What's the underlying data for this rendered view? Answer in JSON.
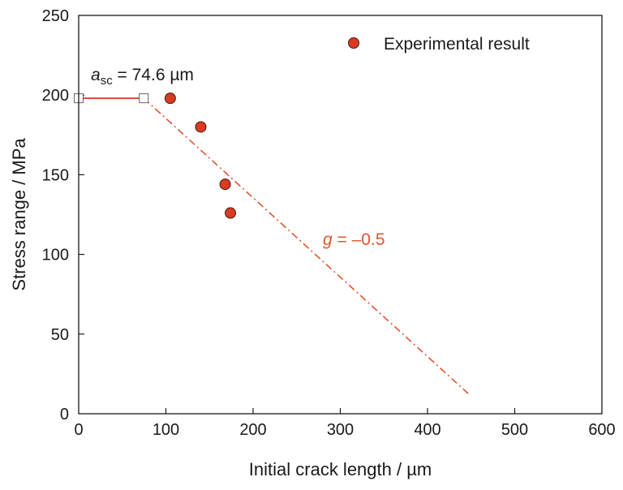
{
  "chart_data": {
    "type": "scatter",
    "title": "",
    "xlabel": "Initial crack length / µm",
    "ylabel": "Stress range / MPa",
    "xlim": [
      0,
      600
    ],
    "ylim": [
      0,
      250
    ],
    "xticks": [
      "0",
      "100",
      "200",
      "300",
      "400",
      "500",
      "600"
    ],
    "yticks": [
      "0",
      "50",
      "100",
      "150",
      "200",
      "250"
    ],
    "grid": false,
    "legend_position": "top-right",
    "series": [
      {
        "name": "Experimental result",
        "kind": "points",
        "color": "#d93a22",
        "points": [
          {
            "x": 105,
            "y": 198
          },
          {
            "x": 140,
            "y": 180
          },
          {
            "x": 168,
            "y": 144
          },
          {
            "x": 174,
            "y": 126
          }
        ]
      },
      {
        "kind": "step-line",
        "color": "#d93a22",
        "points": [
          {
            "x": 0,
            "y": 198
          },
          {
            "x": 74.6,
            "y": 198
          }
        ]
      },
      {
        "kind": "dash-dot-line",
        "color": "#e0552f",
        "points": [
          {
            "x": 74.6,
            "y": 198
          },
          {
            "x": 448,
            "y": 12
          }
        ]
      }
    ],
    "markers": [
      {
        "x": 0,
        "y": 198
      },
      {
        "x": 74.6,
        "y": 198
      }
    ],
    "annotations": {
      "asc_symbol": "a",
      "asc_subscript": "sc",
      "asc_value": " = 74.6 µm",
      "g_symbol": "g",
      "g_value": " = –0.5"
    }
  }
}
